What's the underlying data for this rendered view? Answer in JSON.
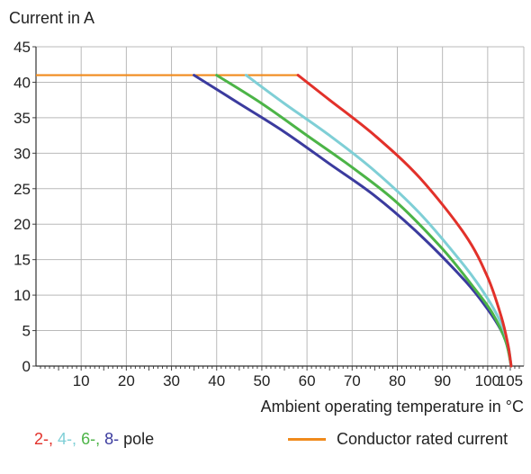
{
  "chart_data": {
    "type": "line",
    "ylabel": "Current in A",
    "xlabel": "Ambient operating temperature in °C",
    "xlim": [
      0,
      108
    ],
    "ylim": [
      0,
      45
    ],
    "xticks": [
      10,
      20,
      30,
      40,
      50,
      60,
      70,
      80,
      90,
      100,
      105
    ],
    "yticks": [
      0,
      5,
      10,
      15,
      20,
      25,
      30,
      35,
      40,
      45
    ],
    "grid": true,
    "rated_current": {
      "label": "Conductor rated current",
      "color": "#f08a1c",
      "x": [
        0,
        58
      ],
      "y": [
        41,
        41
      ]
    },
    "series": [
      {
        "name": "2-",
        "color": "#e2312a",
        "x": [
          58,
          65,
          75,
          85,
          95,
          100,
          103,
          104.5,
          105,
          105.2
        ],
        "y": [
          41,
          37.5,
          32.5,
          26.5,
          18.5,
          12.5,
          7,
          3,
          1,
          0
        ]
      },
      {
        "name": "4-",
        "color": "#7fcfd6",
        "x": [
          46.5,
          55,
          65,
          75,
          85,
          95,
          100,
          103,
          104.5,
          105.2
        ],
        "y": [
          41,
          37,
          32.5,
          27.5,
          21.5,
          14,
          9.5,
          6,
          3,
          0
        ]
      },
      {
        "name": "6-",
        "color": "#4cb447",
        "x": [
          40,
          50,
          60,
          70,
          80,
          90,
          97,
          101,
          104,
          105.2
        ],
        "y": [
          41,
          37,
          32.5,
          28,
          23,
          16.5,
          11,
          7.5,
          3.5,
          0
        ]
      },
      {
        "name": "8-",
        "color": "#3b3b9e",
        "x": [
          35,
          45,
          55,
          65,
          75,
          85,
          95,
          100,
          103,
          104.5,
          105.2
        ],
        "y": [
          41,
          37,
          33,
          28.5,
          24,
          18.5,
          12,
          8,
          5,
          2.5,
          0
        ]
      }
    ],
    "legend": {
      "poles_suffix": "pole",
      "separator": ", "
    }
  }
}
